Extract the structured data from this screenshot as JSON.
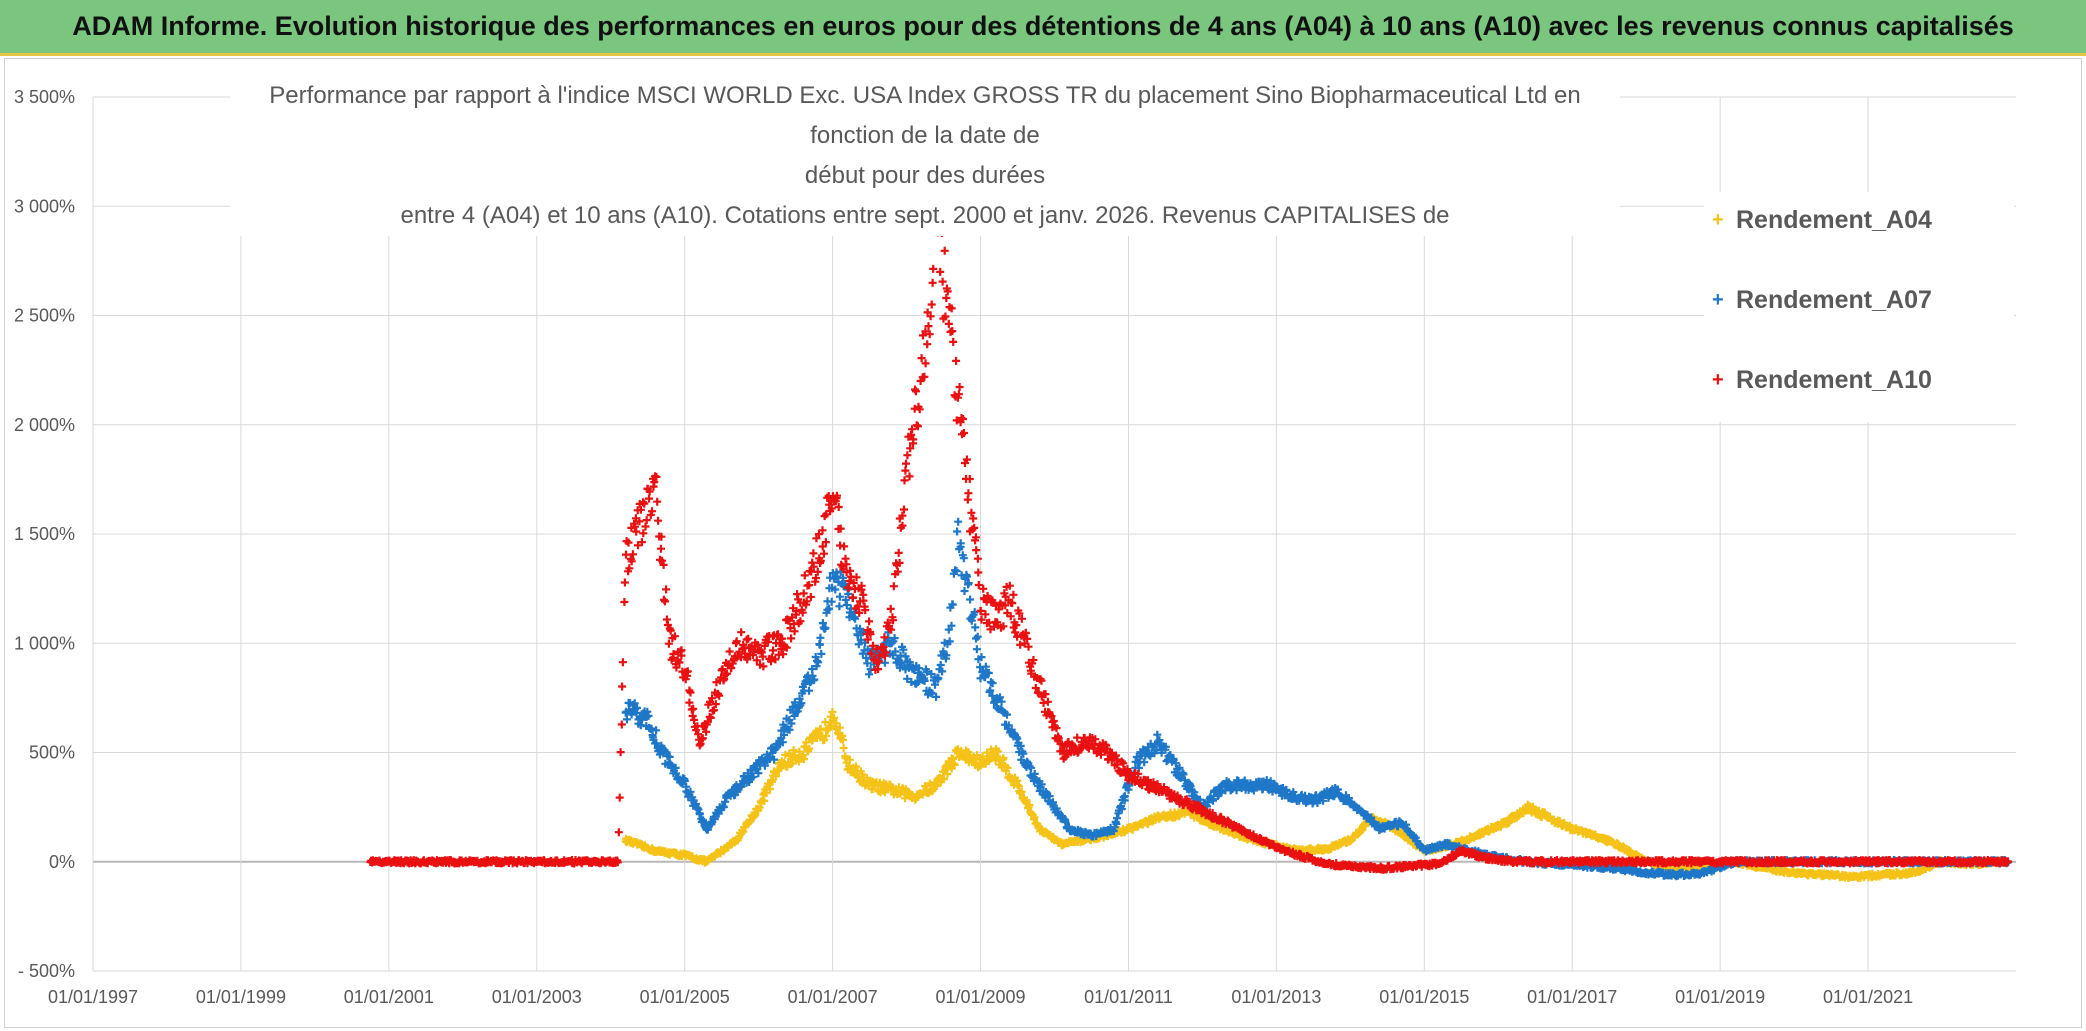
{
  "banner": {
    "title": "ADAM Informe. Evolution historique des performances en euros pour des détentions de 4 ans (A04) à 10 ans (A10) avec les revenus connus capitalisés"
  },
  "chart_data": {
    "type": "scatter",
    "title_lines": [
      "Performance  par rapport à l'indice MSCI WORLD Exc. USA Index GROSS TR  du placement Sino Biopharmaceutical Ltd en fonction de la date de",
      "début pour des durées",
      "entre 4 (A04) et 10 ans (A10). Cotations entre sept. 2000 et janv. 2026. Revenus CAPITALISES de"
    ],
    "xlim": [
      1997.0,
      2023.0
    ],
    "ylim": [
      -500,
      3500
    ],
    "y_ticks": [
      -500,
      0,
      500,
      1000,
      1500,
      2000,
      2500,
      3000,
      3500
    ],
    "y_tick_labels": [
      "- 500%",
      "0%",
      "500%",
      "1 000%",
      "1 500%",
      "2 000%",
      "2 500%",
      "3 000%",
      "3 500%"
    ],
    "x_ticks": [
      1997,
      1999,
      2001,
      2003,
      2005,
      2007,
      2009,
      2011,
      2013,
      2015,
      2017,
      2019,
      2021
    ],
    "x_tick_labels": [
      "01/01/1997",
      "01/01/1999",
      "01/01/2001",
      "01/01/2003",
      "01/01/2005",
      "01/01/2007",
      "01/01/2009",
      "01/01/2011",
      "01/01/2013",
      "01/01/2015",
      "01/01/2017",
      "01/01/2019",
      "01/01/2021"
    ],
    "grid": true,
    "legend_position": "top-right",
    "series": [
      {
        "name": "Rendement_A04",
        "color": "#f5c218",
        "x": [
          2004.2,
          2004.6,
          2005.0,
          2005.3,
          2005.7,
          2006.0,
          2006.3,
          2006.6,
          2006.9,
          2007.0,
          2007.2,
          2007.5,
          2007.8,
          2008.1,
          2008.4,
          2008.7,
          2009.0,
          2009.2,
          2009.5,
          2009.8,
          2010.1,
          2010.4,
          2010.7,
          2011.0,
          2011.4,
          2011.8,
          2012.1,
          2012.5,
          2012.9,
          2013.3,
          2013.7,
          2014.0,
          2014.3,
          2014.6,
          2015.0,
          2015.4,
          2015.7,
          2016.1,
          2016.4,
          2016.7,
          2017.0,
          2017.3,
          2017.6,
          2018.0,
          2018.4,
          2018.8,
          2019.2,
          2019.6,
          2020.0,
          2020.4,
          2020.8,
          2021.2,
          2021.6,
          2022.0,
          2022.4,
          2022.8
        ],
        "y": [
          100,
          50,
          30,
          0,
          100,
          250,
          450,
          500,
          600,
          700,
          450,
          350,
          330,
          300,
          350,
          500,
          450,
          500,
          350,
          150,
          80,
          100,
          120,
          150,
          200,
          230,
          180,
          120,
          80,
          50,
          60,
          100,
          200,
          150,
          50,
          80,
          120,
          180,
          250,
          200,
          150,
          120,
          80,
          0,
          -30,
          -20,
          0,
          -30,
          -50,
          -60,
          -70,
          -60,
          -50,
          0,
          -10,
          0
        ]
      },
      {
        "name": "Rendement_A07",
        "color": "#1f77c8",
        "x": [
          2004.2,
          2004.5,
          2004.7,
          2005.0,
          2005.3,
          2005.6,
          2005.9,
          2006.2,
          2006.5,
          2006.8,
          2007.0,
          2007.2,
          2007.5,
          2007.8,
          2008.1,
          2008.4,
          2008.6,
          2008.7,
          2009.0,
          2009.3,
          2009.6,
          2009.9,
          2010.2,
          2010.5,
          2010.8,
          2011.1,
          2011.4,
          2011.7,
          2012.0,
          2012.3,
          2012.6,
          2012.9,
          2013.2,
          2013.5,
          2013.8,
          2014.1,
          2014.4,
          2014.7,
          2015.0,
          2015.3,
          2015.6,
          2016.0,
          2016.4,
          2016.8,
          2017.2,
          2017.6,
          2018.0,
          2018.4,
          2018.8,
          2019.2,
          2019.6,
          2020.0,
          2020.5,
          2021.0,
          2021.5,
          2022.0,
          2022.5,
          2022.9
        ],
        "y": [
          700,
          650,
          500,
          350,
          150,
          300,
          400,
          500,
          700,
          900,
          1300,
          1200,
          900,
          1000,
          850,
          800,
          1100,
          1500,
          900,
          700,
          450,
          300,
          150,
          120,
          150,
          450,
          550,
          400,
          250,
          350,
          350,
          350,
          300,
          280,
          320,
          250,
          150,
          180,
          50,
          80,
          50,
          20,
          0,
          -10,
          -20,
          -30,
          -50,
          -60,
          -50,
          0,
          0,
          0,
          0,
          0,
          0,
          0,
          0,
          0
        ]
      },
      {
        "name": "Rendement_A10",
        "color": "#e81010",
        "x": [
          2000.75,
          2001.2,
          2001.8,
          2002.4,
          2003.0,
          2003.6,
          2004.1,
          2004.2,
          2004.4,
          2004.6,
          2004.8,
          2005.0,
          2005.2,
          2005.4,
          2005.7,
          2006.0,
          2006.3,
          2006.6,
          2006.9,
          2007.0,
          2007.2,
          2007.4,
          2007.6,
          2007.8,
          2008.0,
          2008.2,
          2008.4,
          2008.6,
          2008.8,
          2009.0,
          2009.2,
          2009.4,
          2009.6,
          2009.8,
          2010.1,
          2010.4,
          2010.7,
          2011.0,
          2011.3,
          2011.6,
          2011.9,
          2012.2,
          2012.5,
          2012.8,
          2013.1,
          2013.4,
          2013.7,
          2014.0,
          2014.4,
          2014.8,
          2015.2,
          2015.5,
          2015.8,
          2016.2,
          2016.6,
          2017.0,
          2017.5,
          2018.0,
          2018.5,
          2019.0,
          2019.5,
          2020.0,
          2020.5,
          2021.0,
          2021.5,
          2022.0,
          2022.5,
          2022.9
        ],
        "y": [
          0,
          0,
          0,
          0,
          0,
          0,
          0,
          1400,
          1550,
          1700,
          1000,
          900,
          550,
          750,
          1000,
          950,
          1000,
          1200,
          1500,
          1700,
          1300,
          1200,
          900,
          1100,
          1800,
          2200,
          2900,
          2400,
          1800,
          1200,
          1100,
          1200,
          1000,
          800,
          500,
          550,
          500,
          400,
          350,
          300,
          250,
          200,
          150,
          100,
          50,
          20,
          -10,
          -20,
          -30,
          -20,
          -10,
          50,
          20,
          0,
          0,
          0,
          0,
          0,
          0,
          0,
          0,
          0,
          0,
          0,
          0,
          0,
          0,
          0
        ]
      }
    ]
  }
}
